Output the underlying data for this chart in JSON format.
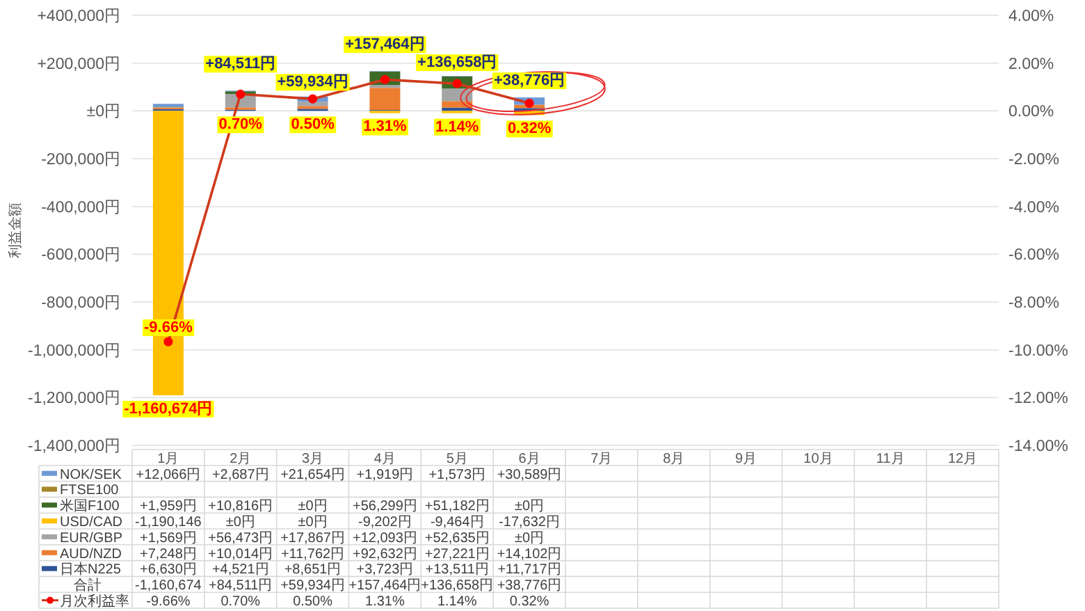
{
  "chart_data": {
    "type": "bar",
    "stacked": true,
    "ylabel": "利益金額",
    "categories": [
      "1月",
      "2月",
      "3月",
      "4月",
      "5月",
      "6月",
      "7月",
      "8月",
      "9月",
      "10月",
      "11月",
      "12月"
    ],
    "ylim": [
      -1400000,
      400000
    ],
    "yticks": [
      {
        "value": 400000,
        "label": "+400,000円"
      },
      {
        "value": 200000,
        "label": "+200,000円"
      },
      {
        "value": 0,
        "label": "±0円"
      },
      {
        "value": -200000,
        "label": "-200,000円"
      },
      {
        "value": -400000,
        "label": "-400,000円"
      },
      {
        "value": -600000,
        "label": "-600,000円"
      },
      {
        "value": -800000,
        "label": "-800,000円"
      },
      {
        "value": -1000000,
        "label": "-1,000,000円"
      },
      {
        "value": -1200000,
        "label": "-1,200,000円"
      },
      {
        "value": -1400000,
        "label": "-1,400,000円"
      }
    ],
    "y2lim": [
      -14,
      4
    ],
    "y2ticks": [
      {
        "value": 4,
        "label": "4.00%"
      },
      {
        "value": 2,
        "label": "2.00%"
      },
      {
        "value": 0,
        "label": "0.00%"
      },
      {
        "value": -2,
        "label": "-2.00%"
      },
      {
        "value": -4,
        "label": "-4.00%"
      },
      {
        "value": -6,
        "label": "-6.00%"
      },
      {
        "value": -8,
        "label": "-8.00%"
      },
      {
        "value": -10,
        "label": "-10.00%"
      },
      {
        "value": -12,
        "label": "-12.00%"
      },
      {
        "value": -14,
        "label": "-14.00%"
      }
    ],
    "grid": "y",
    "legend": "bottom",
    "series": [
      {
        "name": "日本N225",
        "color": "#2e5597",
        "values": [
          6630,
          4521,
          8651,
          3723,
          13511,
          11717,
          null,
          null,
          null,
          null,
          null,
          null
        ],
        "value_labels": [
          "+6,630円",
          "+4,521円",
          "+8,651円",
          "+3,723円",
          "+13,511円",
          "+11,717円",
          null,
          null,
          null,
          null,
          null,
          null
        ]
      },
      {
        "name": "AUD/NZD",
        "color": "#ed7d31",
        "values": [
          7248,
          10014,
          11762,
          92632,
          27221,
          14102,
          null,
          null,
          null,
          null,
          null,
          null
        ],
        "value_labels": [
          "+7,248円",
          "+10,014円",
          "+11,762円",
          "+92,632円",
          "+27,221円",
          "+14,102円",
          null,
          null,
          null,
          null,
          null,
          null
        ]
      },
      {
        "name": "EUR/GBP",
        "color": "#a5a5a5",
        "values": [
          1569,
          56473,
          17867,
          12093,
          52635,
          0,
          null,
          null,
          null,
          null,
          null,
          null
        ],
        "value_labels": [
          "+1,569円",
          "+56,473円",
          "+17,867円",
          "+12,093円",
          "+52,635円",
          "±0円",
          null,
          null,
          null,
          null,
          null,
          null
        ]
      },
      {
        "name": "USD/CAD",
        "color": "#ffc000",
        "values": [
          -1190146,
          0,
          0,
          -9202,
          -9464,
          -17632,
          null,
          null,
          null,
          null,
          null,
          null
        ],
        "value_labels": [
          "-1,190,146",
          "±0円",
          "±0円",
          "-9,202円",
          "-9,464円",
          "-17,632円",
          null,
          null,
          null,
          null,
          null,
          null
        ]
      },
      {
        "name": "米国F100",
        "color": "#3d6b28",
        "values": [
          1959,
          10816,
          0,
          56299,
          51182,
          0,
          null,
          null,
          null,
          null,
          null,
          null
        ],
        "value_labels": [
          "+1,959円",
          "+10,816円",
          "±0円",
          "+56,299円",
          "+51,182円",
          "±0円",
          null,
          null,
          null,
          null,
          null,
          null
        ]
      },
      {
        "name": "FTSE100",
        "color": "#a6862a",
        "values": [
          null,
          null,
          null,
          null,
          null,
          null,
          null,
          null,
          null,
          null,
          null,
          null
        ]
      },
      {
        "name": "NOK/SEK",
        "color": "#6f9ad6",
        "values": [
          12066,
          2687,
          21654,
          1919,
          1573,
          30589,
          null,
          null,
          null,
          null,
          null,
          null
        ],
        "value_labels": [
          "+12,066円",
          "+2,687円",
          "+21,654円",
          "+1,919円",
          "+1,573円",
          "+30,589円",
          null,
          null,
          null,
          null,
          null,
          null
        ]
      },
      {
        "name": "月次利益率",
        "type": "line",
        "axis": "y2",
        "marker": "circle",
        "color": "#d03a1c",
        "values": [
          -9.66,
          0.7,
          0.5,
          1.31,
          1.14,
          0.32,
          null,
          null,
          null,
          null,
          null,
          null
        ],
        "value_labels": [
          "-9.66%",
          "0.70%",
          "0.50%",
          "1.31%",
          "1.14%",
          "0.32%",
          null,
          null,
          null,
          null,
          null,
          null
        ]
      }
    ],
    "totals": [
      "-1,160,674円",
      "+84,511円",
      "+59,934円",
      "+157,464円",
      "+136,658円",
      "+38,776円",
      null,
      null,
      null,
      null,
      null,
      null
    ],
    "annotations": [
      "合計",
      "-1,160,674",
      "+84,511円",
      "+59,934円",
      "+157,464円",
      "+136,658円",
      "+38,776円"
    ]
  }
}
